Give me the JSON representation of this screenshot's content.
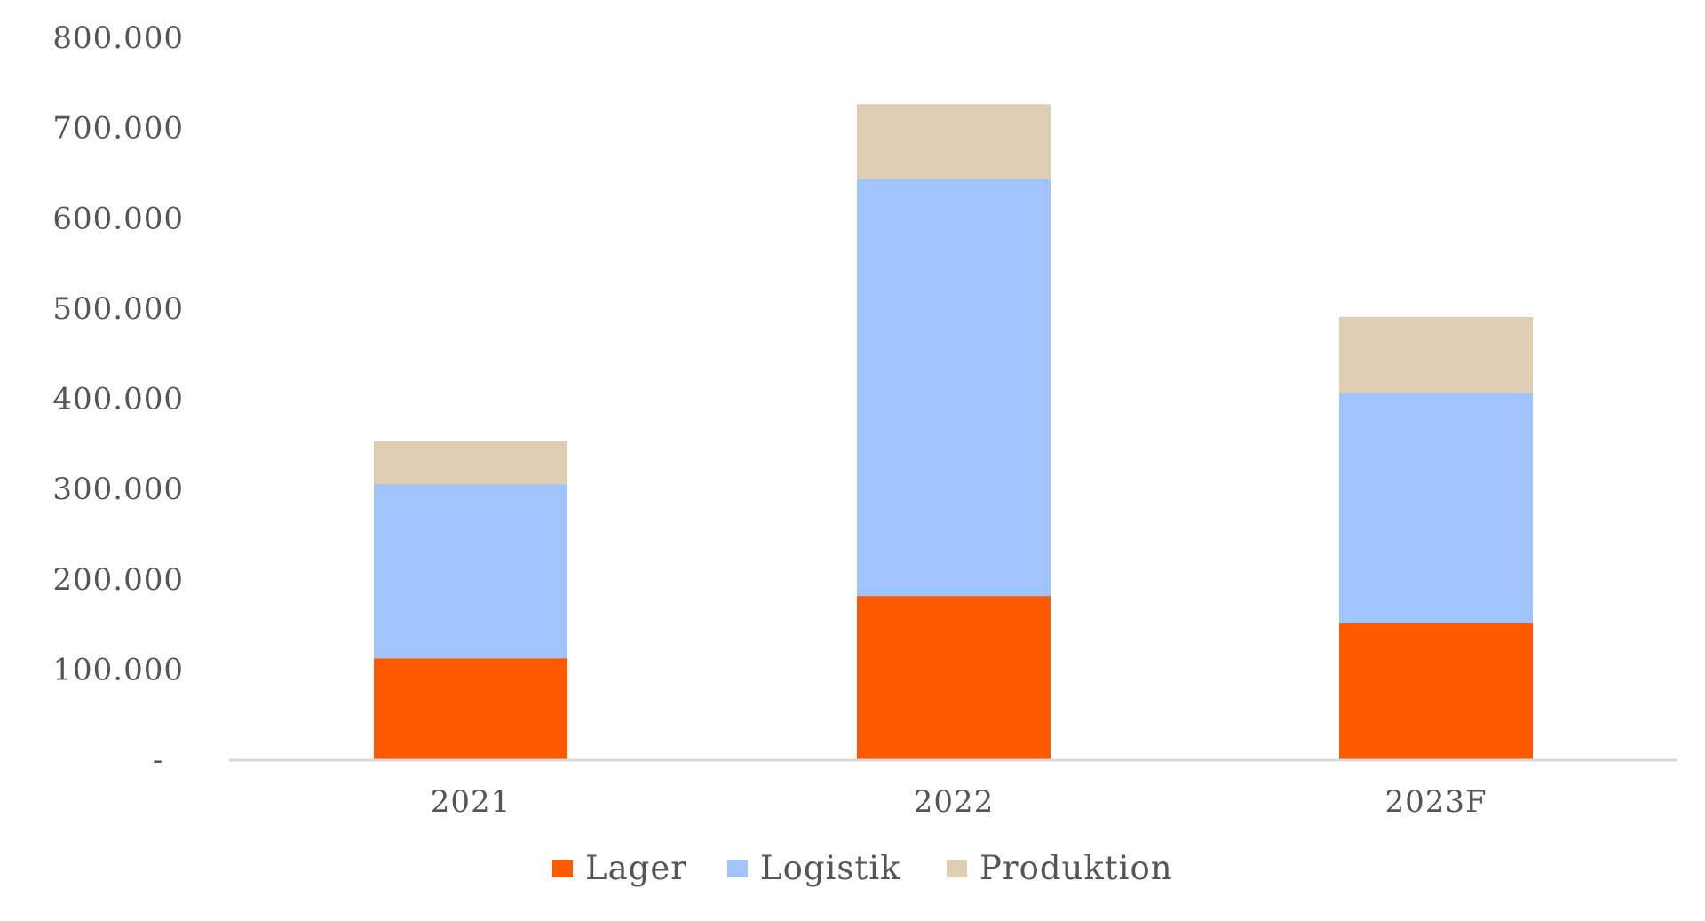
{
  "chart_data": {
    "type": "bar",
    "stacked": true,
    "categories": [
      "2021",
      "2022",
      "2023F"
    ],
    "series": [
      {
        "name": "Lager",
        "color": "#FF5A00",
        "values": [
          112000,
          181000,
          151000
        ]
      },
      {
        "name": "Logistik",
        "color": "#A0C4FF",
        "values": [
          193000,
          462000,
          255000
        ]
      },
      {
        "name": "Produktion",
        "color": "#DFCEB2",
        "values": [
          48000,
          83000,
          84000
        ]
      }
    ],
    "yticks": [
      "-",
      "100.000",
      "200.000",
      "300.000",
      "400.000",
      "500.000",
      "600.000",
      "700.000",
      "800.000"
    ],
    "ylim": [
      0,
      800000
    ],
    "grid": false,
    "legend": "bottom"
  }
}
